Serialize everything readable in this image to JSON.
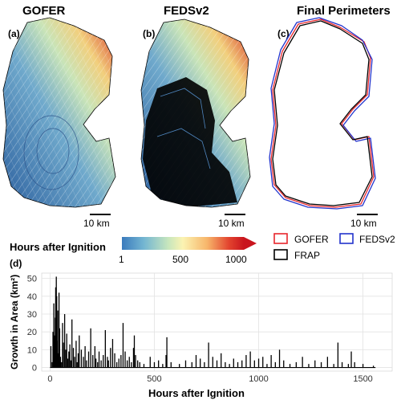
{
  "panels": {
    "a": {
      "label": "(a)",
      "title": "GOFER",
      "scale": "10 km"
    },
    "b": {
      "label": "(b)",
      "title": "FEDSv2",
      "scale": "10 km"
    },
    "c": {
      "label": "(c)",
      "title": "Final Perimeters",
      "scale": "10 km"
    }
  },
  "colorbar": {
    "title": "Hours after Ignition",
    "ticks": [
      "1",
      "500",
      "1000"
    ],
    "colors": [
      "#3b7bbd",
      "#74b6d2",
      "#c7e6bd",
      "#fbf3b2",
      "#f7b56a",
      "#e2432e",
      "#c9151e"
    ]
  },
  "legend": {
    "items": [
      {
        "label": "GOFER",
        "color": "#e8262c"
      },
      {
        "label": "FEDSv2",
        "color": "#2233cc"
      },
      {
        "label": "FRAP",
        "color": "#000000"
      }
    ]
  },
  "panel_d_label": "(d)",
  "chart_data": {
    "type": "bar",
    "xlabel": "Hours after Ignition",
    "ylabel": "Growth in Area (km²)",
    "xlim": [
      -40,
      1640
    ],
    "ylim": [
      -2,
      53
    ],
    "xticks": [
      0,
      500,
      1000,
      1500
    ],
    "yticks": [
      0,
      10,
      20,
      30,
      40,
      50
    ],
    "x": [
      4,
      10,
      14,
      18,
      22,
      25,
      27,
      30,
      32,
      34,
      37,
      40,
      43,
      46,
      50,
      55,
      60,
      64,
      70,
      75,
      80,
      85,
      90,
      95,
      100,
      105,
      112,
      118,
      125,
      130,
      135,
      140,
      150,
      160,
      168,
      175,
      185,
      195,
      205,
      215,
      220,
      228,
      235,
      245,
      255,
      265,
      275,
      280,
      290,
      300,
      310,
      320,
      330,
      340,
      350,
      360,
      370,
      380,
      390,
      400,
      404,
      410,
      420,
      430,
      450,
      480,
      500,
      520,
      540,
      556,
      560,
      580,
      620,
      650,
      680,
      700,
      720,
      740,
      760,
      780,
      800,
      820,
      840,
      860,
      880,
      900,
      920,
      940,
      960,
      980,
      1000,
      1020,
      1040,
      1060,
      1080,
      1100,
      1120,
      1150,
      1180,
      1210,
      1240,
      1270,
      1300,
      1330,
      1360,
      1380,
      1400,
      1430,
      1444,
      1460,
      1500,
      1550
    ],
    "values": [
      12,
      3,
      20,
      36,
      18,
      28,
      45,
      51,
      40,
      15,
      32,
      8,
      42,
      22,
      6,
      3,
      25,
      14,
      30,
      10,
      19,
      5,
      9,
      13,
      4,
      27,
      11,
      6,
      15,
      3,
      8,
      18,
      10,
      6,
      12,
      4,
      9,
      22,
      7,
      12,
      5,
      3,
      9,
      4,
      7,
      21,
      6,
      4,
      11,
      16,
      8,
      3,
      5,
      7,
      25,
      9,
      4,
      6,
      3,
      11,
      18,
      7,
      4,
      3,
      2,
      6,
      3,
      4,
      2,
      7,
      17,
      3,
      2,
      4,
      3,
      7,
      5,
      3,
      14,
      6,
      4,
      8,
      3,
      2,
      5,
      3,
      4,
      7,
      9,
      4,
      5,
      6,
      2,
      7,
      3,
      10,
      4,
      2,
      3,
      6,
      2,
      4,
      3,
      6,
      2,
      14,
      3,
      2,
      9,
      3,
      2,
      1
    ]
  }
}
